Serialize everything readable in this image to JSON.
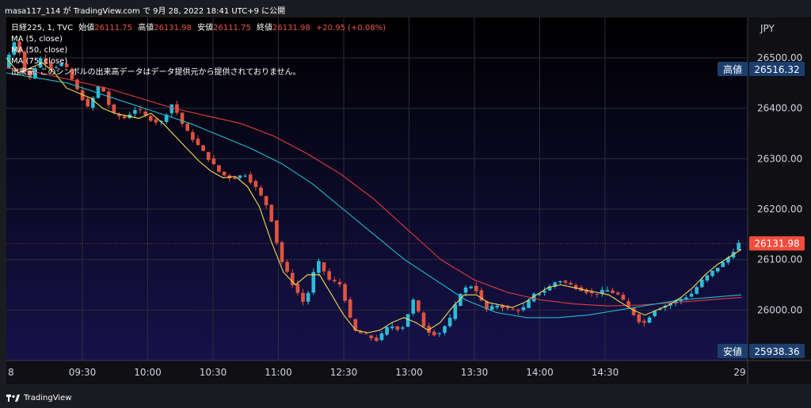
{
  "header": {
    "caption": "masa117_114 が TradingView.com で 9月 28, 2022 18:41 UTC+9 に公開"
  },
  "legend": {
    "symbol": "日経225, 1, TVC",
    "open_label": "始値",
    "open": "26111.75",
    "high_label": "高値",
    "high": "26131.98",
    "low_label": "安値",
    "low": "26111.75",
    "close_label": "終値",
    "close": "26131.98",
    "change": "+20.95 (+0.08%)",
    "ma1": "MA (5, close)",
    "ma2": "MA (50, close)",
    "ma3": "MA (75, close)",
    "volume_note": "出来高: このシンボルの出来高データはデータ提供元から提供されておりません。"
  },
  "footer": {
    "brand": "TradingView"
  },
  "colors": {
    "up": "#2cbdd9",
    "down": "#e0533f",
    "ma5": "#f3dc4f",
    "ma50": "#1fbccd",
    "ma75": "#e23d3d",
    "price_badge": "#f24c3d",
    "stat_badge": "#1c3f6e"
  },
  "chart_data": {
    "type": "candlestick",
    "currency": "JPY",
    "y_ticks": [
      "26500.00",
      "26400.00",
      "26300.00",
      "26200.00",
      "26100.00",
      "26000.00"
    ],
    "y_tick_values": [
      26500,
      26400,
      26300,
      26200,
      26100,
      26000
    ],
    "x_ticks": [
      "8",
      "09:30",
      "10:00",
      "10:30",
      "11:00",
      "12:30",
      "13:00",
      "13:30",
      "14:00",
      "14:30",
      "29"
    ],
    "ylim": [
      25900,
      26580
    ],
    "last_price": {
      "value": 26131.98,
      "label": "26131.98"
    },
    "session_high": {
      "label": "高値",
      "value": "26516.32"
    },
    "session_low": {
      "label": "安値",
      "value": "25938.36"
    },
    "price_path": [
      26480,
      26540,
      26450,
      26500,
      26480,
      26490,
      26440,
      26400,
      26450,
      26390,
      26380,
      26400,
      26380,
      26370,
      26410,
      26360,
      26330,
      26300,
      26270,
      26260,
      26270,
      26240,
      26200,
      26100,
      26050,
      26010,
      26100,
      26060,
      26050,
      25960,
      25950,
      25940,
      25970,
      25960,
      26020,
      25960,
      25950,
      25980,
      26040,
      26050,
      26000,
      26010,
      26000,
      26000,
      26030,
      26040,
      26060,
      26050,
      26040,
      26030,
      26040,
      26030,
      26000,
      25970,
      26000,
      26010,
      26020,
      26030,
      26060,
      26080,
      26100,
      26131.98
    ],
    "ma5": [
      26500,
      26470,
      26480,
      26490,
      26470,
      26440,
      26430,
      26420,
      26400,
      26390,
      26385,
      26380,
      26390,
      26370,
      26345,
      26320,
      26295,
      26275,
      26262,
      26265,
      26245,
      26205,
      26135,
      26075,
      26050,
      26070,
      26070,
      26030,
      25990,
      25960,
      25955,
      25960,
      25975,
      25985,
      25975,
      25960,
      25975,
      26005,
      26030,
      26030,
      26015,
      26010,
      26005,
      26015,
      26030,
      26045,
      26050,
      26045,
      26040,
      26035,
      26030,
      26015,
      26000,
      25990,
      26000,
      26010,
      26025,
      26045,
      26070,
      26090,
      26105,
      26120
    ],
    "ma50": [
      26470,
      26460,
      26450,
      26430,
      26410,
      26390,
      26370,
      26345,
      26320,
      26290,
      26250,
      26200,
      26150,
      26100,
      26060,
      26020,
      25995,
      25985,
      25985,
      25990,
      26000,
      26010,
      26020,
      26025,
      26030
    ],
    "ma75": [
      26480,
      26470,
      26455,
      26440,
      26420,
      26400,
      26385,
      26370,
      26345,
      26310,
      26270,
      26220,
      26160,
      26100,
      26060,
      26035,
      26020,
      26012,
      26008,
      26010,
      26015,
      26020,
      26025
    ]
  }
}
